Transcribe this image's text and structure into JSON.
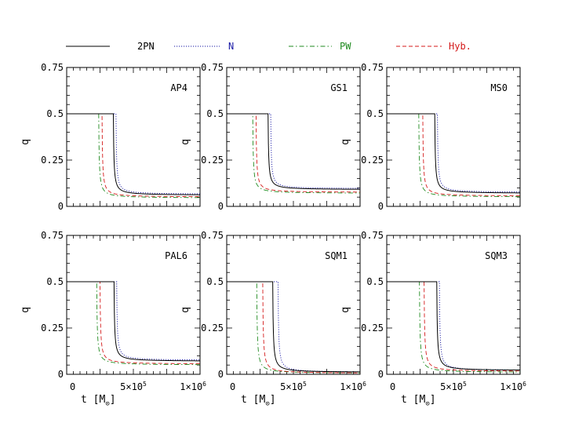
{
  "chart_data": {
    "type": "line",
    "legend_position": "top",
    "legend": [
      {
        "name": "2PN",
        "color": "#000000",
        "dash": "solid"
      },
      {
        "name": "N",
        "color": "#1a1aa6",
        "dash": "dotted"
      },
      {
        "name": "PW",
        "color": "#1e8a1e",
        "dash": "dashdot"
      },
      {
        "name": "Hyb.",
        "color": "#d41a1a",
        "dash": "dashed"
      }
    ],
    "colors": {
      "2PN": "#000000",
      "N": "#1a1aa6",
      "PW": "#1e8a1e",
      "Hyb.": "#d41a1a"
    },
    "ylabel": "q",
    "xlabel_parts": {
      "main": "t",
      "unit": "M",
      "sub": "⊙"
    },
    "yticks": [
      "0",
      "0.25",
      "0.5",
      "0.75"
    ],
    "ytick_values": [
      0,
      0.25,
      0.5,
      0.75
    ],
    "xtick_bottom": [
      {
        "left": "0",
        "mid": "5×10",
        "mid_exp": "5",
        "right": "1×10",
        "right_exp": "6"
      },
      {
        "left": "0",
        "mid": "5×10",
        "mid_exp": "5",
        "right": "1×10",
        "right_exp": "6"
      },
      {
        "left": "0",
        "mid": "5×10",
        "mid_exp": "5",
        "right": "1×10",
        "right_exp": "6"
      }
    ],
    "xlim": [
      0,
      1000000
    ],
    "ylim": [
      0,
      0.75
    ],
    "panels": [
      {
        "title": "AP4",
        "drops": {
          "2PN": 350000,
          "N": 370000,
          "PW": 240000,
          "Hyb.": 265000
        },
        "final": {
          "2PN": 0.06,
          "N": 0.065,
          "PW": 0.045,
          "Hyb.": 0.05
        }
      },
      {
        "title": "GS1",
        "drops": {
          "2PN": 310000,
          "N": 330000,
          "PW": 195000,
          "Hyb.": 220000
        },
        "final": {
          "2PN": 0.09,
          "N": 0.095,
          "PW": 0.07,
          "Hyb.": 0.075
        }
      },
      {
        "title": "MS0",
        "drops": {
          "2PN": 360000,
          "N": 380000,
          "PW": 240000,
          "Hyb.": 270000
        },
        "final": {
          "2PN": 0.07,
          "N": 0.075,
          "PW": 0.05,
          "Hyb.": 0.055
        }
      },
      {
        "title": "PAL6",
        "drops": {
          "2PN": 355000,
          "N": 375000,
          "PW": 225000,
          "Hyb.": 250000
        },
        "final": {
          "2PN": 0.07,
          "N": 0.075,
          "PW": 0.05,
          "Hyb.": 0.055
        }
      },
      {
        "title": "SQM1",
        "drops": {
          "2PN": 345000,
          "N": 385000,
          "PW": 225000,
          "Hyb.": 270000
        },
        "final": {
          "2PN": 0.01,
          "N": 0.01,
          "PW": 0.005,
          "Hyb.": 0.005
        }
      },
      {
        "title": "SQM3",
        "drops": {
          "2PN": 375000,
          "N": 395000,
          "PW": 245000,
          "Hyb.": 280000
        },
        "final": {
          "2PN": 0.02,
          "N": 0.02,
          "PW": 0.01,
          "Hyb.": 0.015
        }
      }
    ]
  }
}
